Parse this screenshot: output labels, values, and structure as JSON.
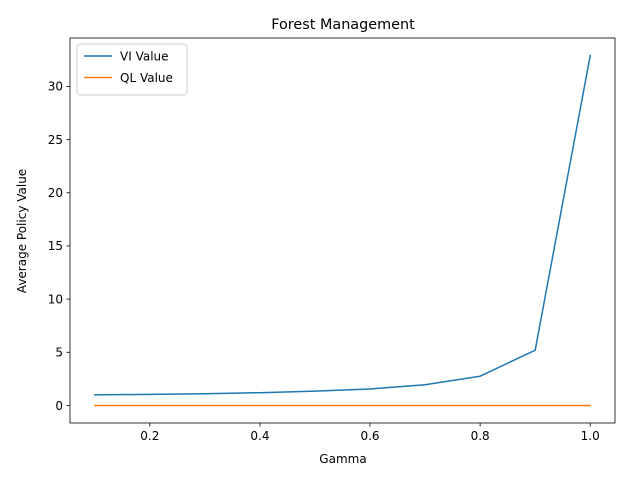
{
  "chart_data": {
    "type": "line",
    "title": "Forest Management",
    "xlabel": "Gamma",
    "ylabel": "Average Policy Value",
    "x": [
      0.1,
      0.2,
      0.3,
      0.4,
      0.5,
      0.6,
      0.7,
      0.8,
      0.9,
      1.0
    ],
    "xlim": [
      0.055,
      1.045
    ],
    "ylim": [
      -1.65,
      34.55
    ],
    "x_ticks": [
      0.2,
      0.4,
      0.6,
      0.8,
      1.0
    ],
    "x_tick_labels": [
      "0.2",
      "0.4",
      "0.6",
      "0.8",
      "1.0"
    ],
    "y_ticks": [
      0,
      5,
      10,
      15,
      20,
      25,
      30
    ],
    "y_tick_labels": [
      "0",
      "5",
      "10",
      "15",
      "20",
      "25",
      "30"
    ],
    "grid": false,
    "legend_position": "upper-left",
    "series": [
      {
        "name": "VI Value",
        "color": "#1f77b4",
        "values": [
          1.0,
          1.04,
          1.1,
          1.2,
          1.35,
          1.55,
          1.95,
          2.75,
          5.2,
          32.9
        ]
      },
      {
        "name": "QL Value",
        "color": "#ff7f0e",
        "values": [
          0.0,
          0.0,
          0.0,
          0.0,
          0.0,
          0.0,
          0.0,
          0.0,
          0.0,
          0.0
        ]
      }
    ]
  }
}
